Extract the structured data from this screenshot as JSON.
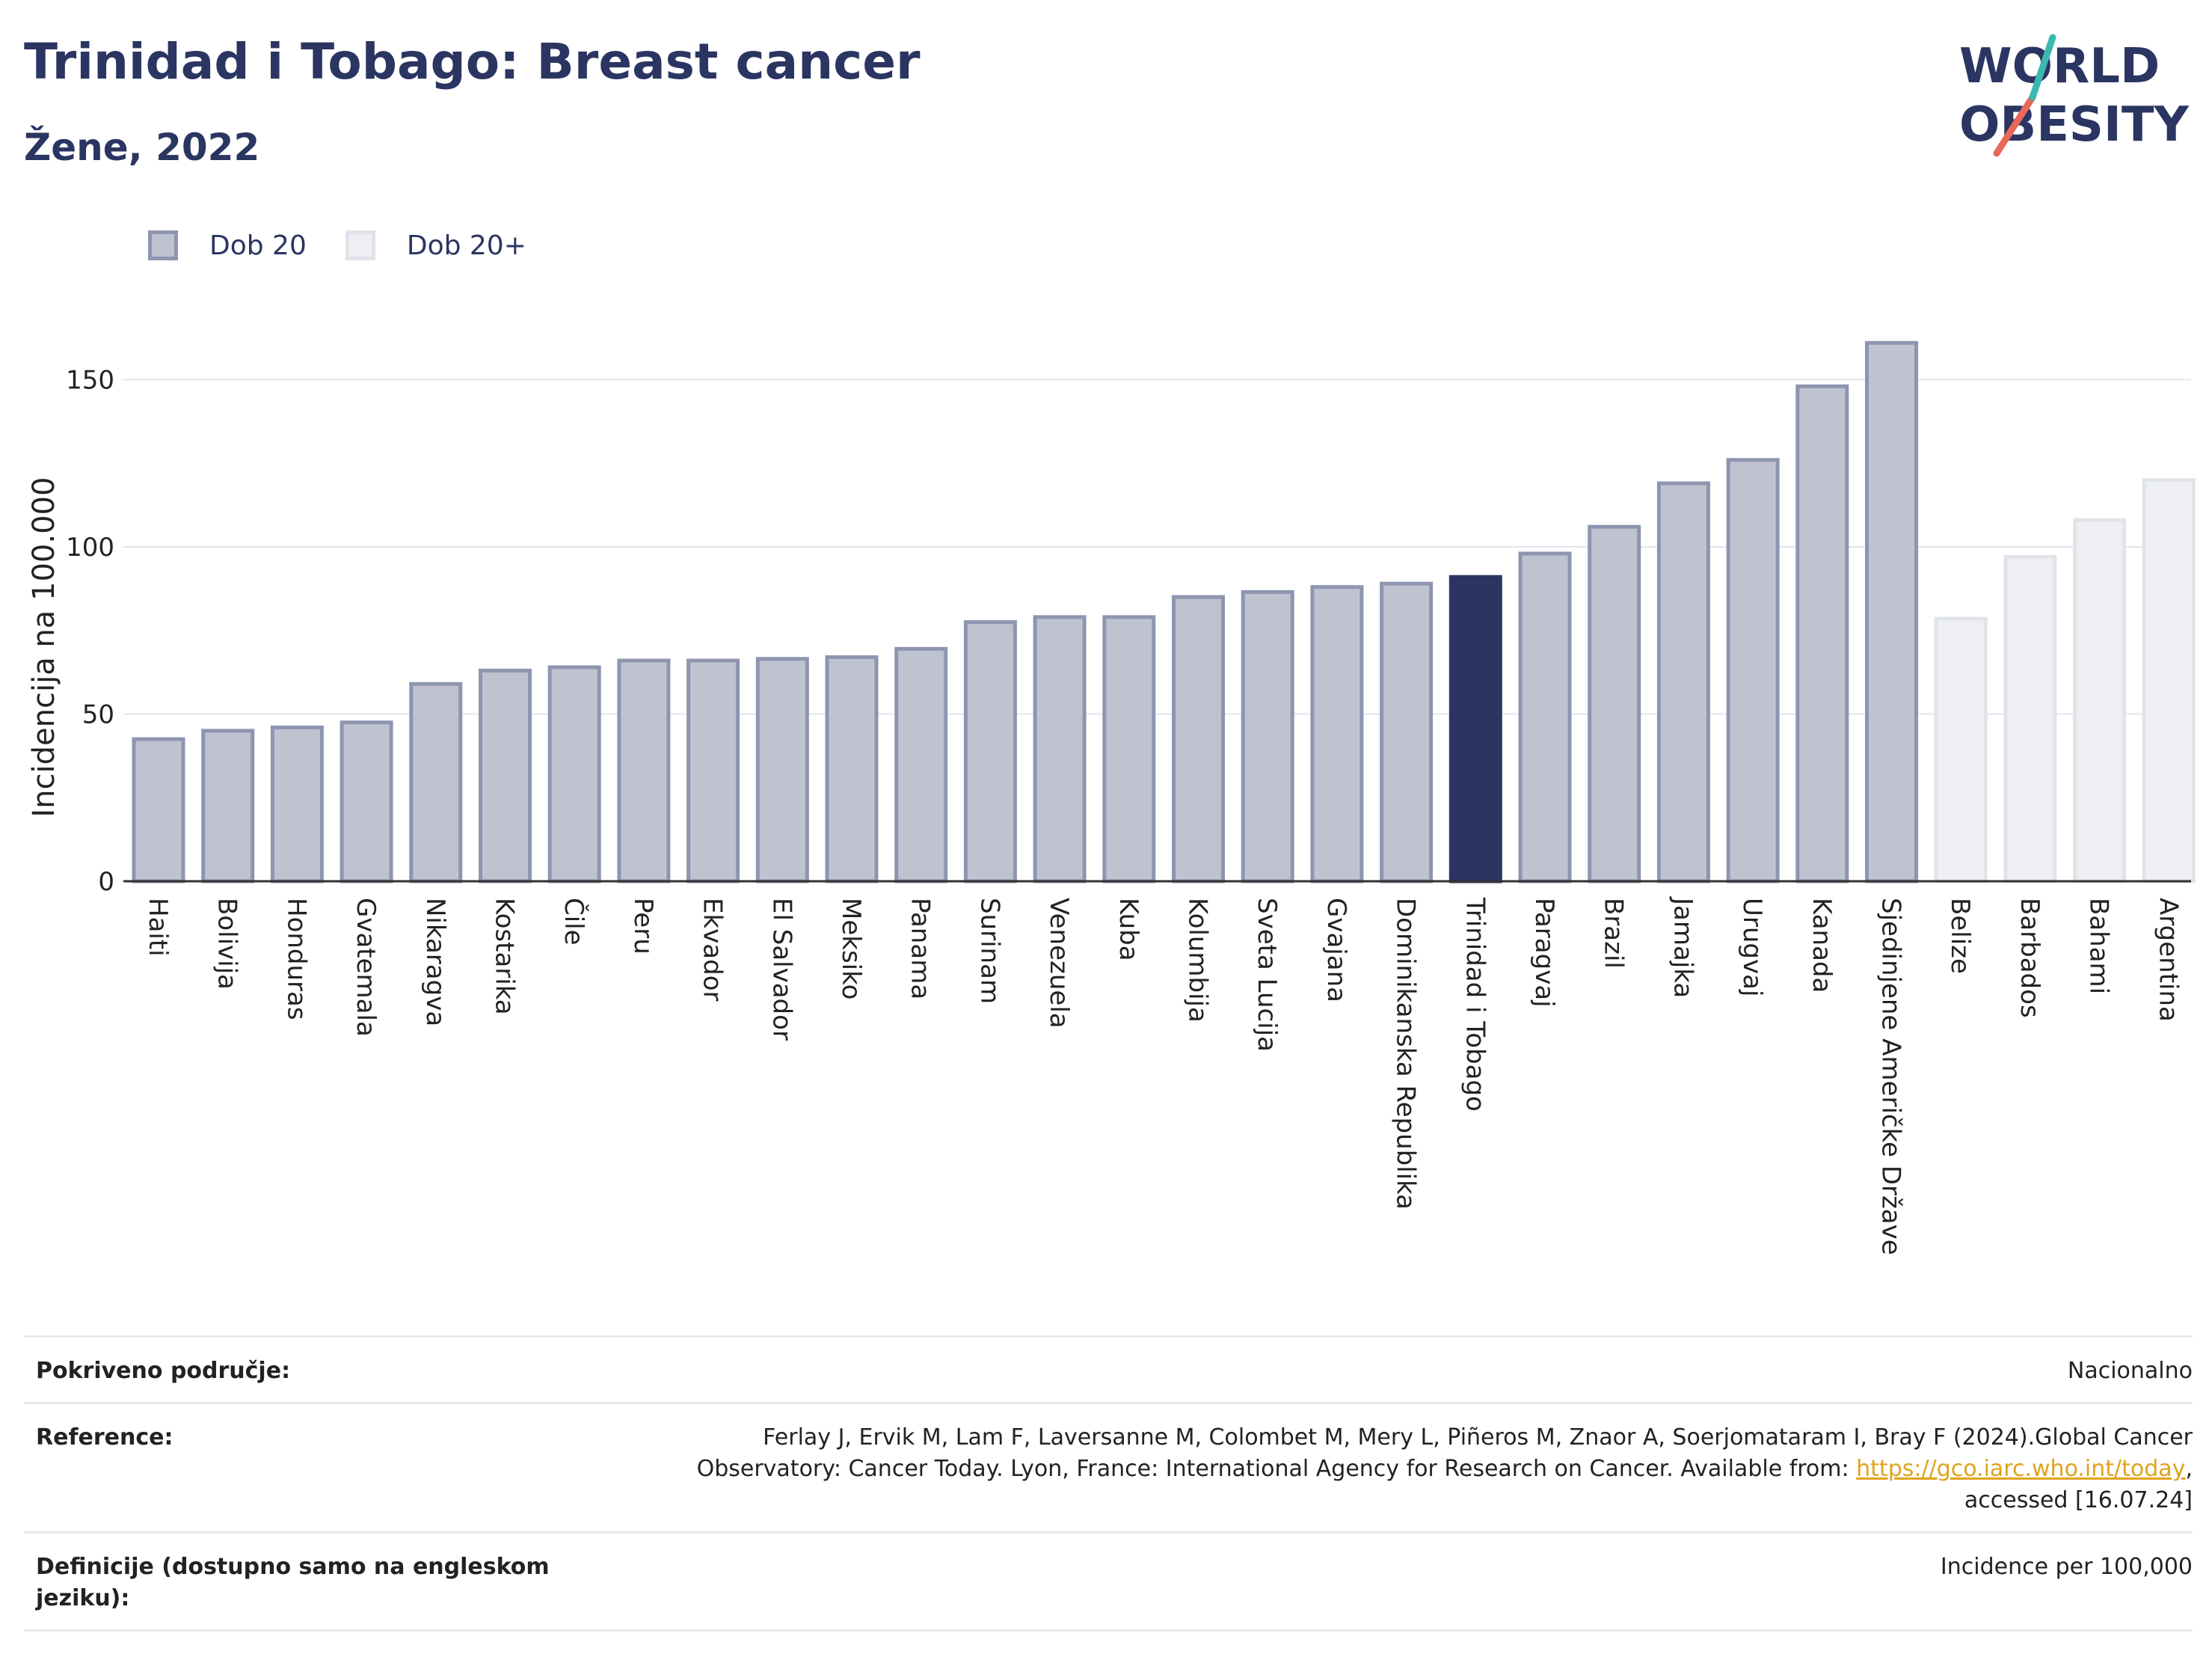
{
  "header": {
    "title": "Trinidad i Tobago: Breast cancer",
    "subtitle": "Žene, 2022"
  },
  "logo": {
    "line1": "WORLD",
    "line2": "OBESITY"
  },
  "legend": {
    "items": [
      "Dob 20",
      "Dob 20+"
    ]
  },
  "colors": {
    "age20_fill": "#bfc3d0",
    "age20_border": "#8e95b0",
    "age20plus_fill": "#eeeff3",
    "age20plus_border": "#e1e3ea",
    "highlight": "#2b3562",
    "text": "#2b3562"
  },
  "chart_data": {
    "type": "bar",
    "ylabel": "Incidencija na 100.000",
    "xlabel": "",
    "ylim": [
      0,
      170
    ],
    "yticks": [
      0,
      50,
      100,
      150
    ],
    "grid": true,
    "legend_position": "top-left",
    "highlight": "Trinidad i Tobago",
    "categories": [
      "Haiti",
      "Bolivija",
      "Honduras",
      "Gvatemala",
      "Nikaragva",
      "Kostarika",
      "Čile",
      "Peru",
      "Ekvador",
      "El Salvador",
      "Meksiko",
      "Panama",
      "Surinam",
      "Venezuela",
      "Kuba",
      "Kolumbija",
      "Sveta Lucija",
      "Gvajana",
      "Dominikanska Republika",
      "Trinidad i Tobago",
      "Paragvaj",
      "Brazil",
      "Jamajka",
      "Urugvaj",
      "Kanada",
      "Sjedinjene Američke Države",
      "Belize",
      "Barbados",
      "Bahami",
      "Argentina"
    ],
    "values": [
      42.5,
      45,
      46,
      47.5,
      59,
      63,
      64,
      66,
      66,
      66.5,
      67,
      69.5,
      77.5,
      79,
      79,
      85,
      86.5,
      88,
      89,
      91,
      98,
      106,
      119,
      126,
      148,
      161,
      78.5,
      97,
      108,
      120
    ],
    "series_group": [
      "Dob 20",
      "Dob 20",
      "Dob 20",
      "Dob 20",
      "Dob 20",
      "Dob 20",
      "Dob 20",
      "Dob 20",
      "Dob 20",
      "Dob 20",
      "Dob 20",
      "Dob 20",
      "Dob 20",
      "Dob 20",
      "Dob 20",
      "Dob 20",
      "Dob 20",
      "Dob 20",
      "Dob 20",
      "Dob 20",
      "Dob 20",
      "Dob 20",
      "Dob 20",
      "Dob 20",
      "Dob 20",
      "Dob 20",
      "Dob 20+",
      "Dob 20+",
      "Dob 20+",
      "Dob 20+"
    ]
  },
  "footer": {
    "coverage_label": "Pokriveno područje:",
    "coverage_value": "Nacionalno",
    "reference_label": "Reference:",
    "reference_text_1": "Ferlay J, Ervik M, Lam F, Laversanne M, Colombet M, Mery L, Piñeros M, Znaor A, Soerjomataram I, Bray F (2024).Global Cancer",
    "reference_text_2": "Observatory: Cancer Today. Lyon, France: International Agency for Research on Cancer. Available from: ",
    "reference_link": "https://gco.iarc.who.int/today",
    "reference_text_3": ",",
    "reference_text_4": "accessed [16.07.24]",
    "definitions_label": "Definicije (dostupno samo na engleskom jeziku):",
    "definitions_value": "Incidence per 100,000"
  }
}
